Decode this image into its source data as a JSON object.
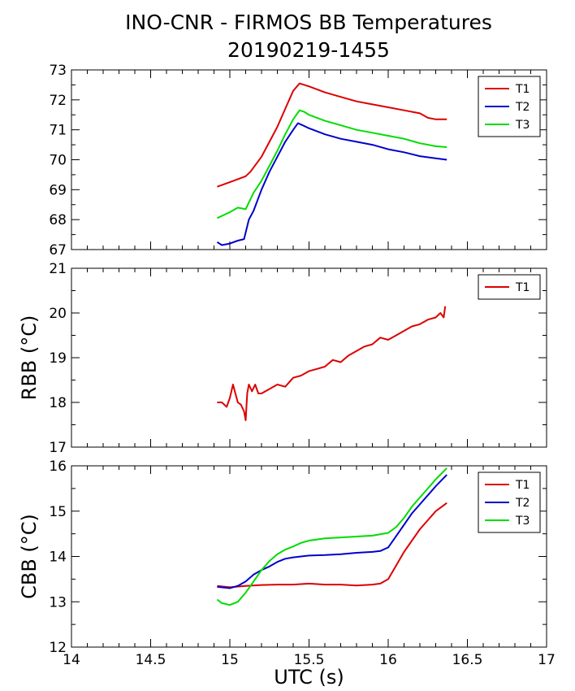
{
  "title_line1": "INO-CNR - FIRMOS BB Temperatures",
  "title_line2": "20190219-1455",
  "colors": {
    "T1": "#dd0000",
    "T2": "#0000cc",
    "T3": "#00dd00"
  },
  "chart_data": [
    {
      "type": "line",
      "id": "top",
      "ylabel": "",
      "xlim": [
        14,
        17
      ],
      "ylim": [
        67,
        73
      ],
      "yticks": [
        "67",
        "68",
        "69",
        "70",
        "71",
        "72",
        "73"
      ],
      "legend_position": "top-right",
      "series": [
        {
          "name": "T1",
          "x": [
            14.92,
            15.0,
            15.05,
            15.1,
            15.13,
            15.2,
            15.25,
            15.3,
            15.35,
            15.4,
            15.44,
            15.47,
            15.5,
            15.55,
            15.6,
            15.7,
            15.8,
            15.9,
            16.0,
            16.1,
            16.2,
            16.25,
            16.3,
            16.37
          ],
          "y": [
            69.1,
            69.25,
            69.35,
            69.45,
            69.6,
            70.1,
            70.6,
            71.1,
            71.7,
            72.3,
            72.55,
            72.5,
            72.45,
            72.35,
            72.25,
            72.1,
            71.95,
            71.85,
            71.75,
            71.65,
            71.55,
            71.4,
            71.35,
            71.35
          ]
        },
        {
          "name": "T2",
          "x": [
            14.92,
            14.95,
            15.0,
            15.05,
            15.09,
            15.12,
            15.15,
            15.2,
            15.25,
            15.3,
            15.35,
            15.4,
            15.43,
            15.46,
            15.5,
            15.6,
            15.7,
            15.8,
            15.9,
            16.0,
            16.1,
            16.2,
            16.3,
            16.37
          ],
          "y": [
            67.25,
            67.15,
            67.2,
            67.3,
            67.35,
            68.0,
            68.3,
            69.0,
            69.6,
            70.1,
            70.6,
            71.0,
            71.22,
            71.15,
            71.05,
            70.85,
            70.7,
            70.6,
            70.5,
            70.35,
            70.25,
            70.12,
            70.05,
            70.0
          ]
        },
        {
          "name": "T3",
          "x": [
            14.92,
            15.0,
            15.05,
            15.1,
            15.15,
            15.2,
            15.25,
            15.3,
            15.35,
            15.4,
            15.44,
            15.47,
            15.5,
            15.6,
            15.7,
            15.8,
            15.9,
            16.0,
            16.1,
            16.2,
            16.3,
            16.37
          ],
          "y": [
            68.05,
            68.25,
            68.4,
            68.35,
            68.9,
            69.3,
            69.8,
            70.3,
            70.85,
            71.35,
            71.65,
            71.6,
            71.5,
            71.3,
            71.15,
            71.0,
            70.9,
            70.8,
            70.7,
            70.55,
            70.45,
            70.42
          ]
        }
      ]
    },
    {
      "type": "line",
      "id": "middle",
      "ylabel": "RBB (°C)",
      "xlim": [
        14,
        17
      ],
      "ylim": [
        17,
        21
      ],
      "yticks": [
        "17",
        "18",
        "19",
        "20",
        "21"
      ],
      "legend_position": "top-right",
      "series": [
        {
          "name": "T1",
          "x": [
            14.92,
            14.95,
            14.98,
            15.0,
            15.02,
            15.05,
            15.07,
            15.09,
            15.1,
            15.11,
            15.12,
            15.14,
            15.16,
            15.18,
            15.2,
            15.25,
            15.3,
            15.35,
            15.4,
            15.45,
            15.5,
            15.55,
            15.6,
            15.65,
            15.7,
            15.75,
            15.8,
            15.85,
            15.9,
            15.95,
            16.0,
            16.05,
            16.1,
            16.15,
            16.2,
            16.25,
            16.3,
            16.33,
            16.35,
            16.36
          ],
          "y": [
            18.0,
            18.0,
            17.9,
            18.1,
            18.4,
            18.0,
            17.95,
            17.8,
            17.6,
            18.2,
            18.4,
            18.25,
            18.4,
            18.2,
            18.2,
            18.3,
            18.4,
            18.35,
            18.55,
            18.6,
            18.7,
            18.75,
            18.8,
            18.95,
            18.9,
            19.05,
            19.15,
            19.25,
            19.3,
            19.45,
            19.4,
            19.5,
            19.6,
            19.7,
            19.75,
            19.85,
            19.9,
            20.0,
            19.9,
            20.15
          ]
        }
      ]
    },
    {
      "type": "line",
      "id": "bottom",
      "ylabel": "CBB (°C)",
      "xlabel": "UTC (s)",
      "xlim": [
        14,
        17
      ],
      "ylim": [
        12,
        16
      ],
      "xticks": [
        "14",
        "14.5",
        "15",
        "15.5",
        "16",
        "16.5",
        "17"
      ],
      "yticks": [
        "12",
        "13",
        "14",
        "15",
        "16"
      ],
      "legend_position": "top-right",
      "series": [
        {
          "name": "T1",
          "x": [
            14.92,
            15.0,
            15.1,
            15.2,
            15.3,
            15.4,
            15.5,
            15.6,
            15.7,
            15.8,
            15.9,
            15.95,
            16.0,
            16.05,
            16.1,
            16.15,
            16.2,
            16.25,
            16.3,
            16.37
          ],
          "y": [
            13.35,
            13.32,
            13.35,
            13.37,
            13.38,
            13.38,
            13.4,
            13.38,
            13.38,
            13.36,
            13.38,
            13.4,
            13.5,
            13.8,
            14.1,
            14.35,
            14.6,
            14.8,
            15.0,
            15.18
          ]
        },
        {
          "name": "T2",
          "x": [
            14.92,
            15.0,
            15.05,
            15.1,
            15.15,
            15.2,
            15.25,
            15.3,
            15.35,
            15.4,
            15.45,
            15.5,
            15.6,
            15.7,
            15.8,
            15.9,
            15.95,
            16.0,
            16.05,
            16.1,
            16.15,
            16.2,
            16.25,
            16.3,
            16.37
          ],
          "y": [
            13.33,
            13.3,
            13.35,
            13.45,
            13.6,
            13.7,
            13.78,
            13.88,
            13.95,
            13.98,
            14.0,
            14.02,
            14.03,
            14.05,
            14.08,
            14.1,
            14.12,
            14.2,
            14.45,
            14.7,
            14.95,
            15.15,
            15.35,
            15.55,
            15.8
          ]
        },
        {
          "name": "T3",
          "x": [
            14.92,
            14.95,
            15.0,
            15.05,
            15.1,
            15.15,
            15.2,
            15.25,
            15.3,
            15.35,
            15.4,
            15.45,
            15.5,
            15.6,
            15.7,
            15.8,
            15.9,
            16.0,
            16.05,
            16.1,
            16.15,
            16.2,
            16.25,
            16.3,
            16.37
          ],
          "y": [
            13.05,
            12.97,
            12.93,
            13.0,
            13.2,
            13.45,
            13.7,
            13.9,
            14.05,
            14.15,
            14.22,
            14.3,
            14.35,
            14.4,
            14.42,
            14.44,
            14.46,
            14.52,
            14.65,
            14.85,
            15.1,
            15.3,
            15.5,
            15.7,
            15.95
          ]
        }
      ]
    }
  ]
}
